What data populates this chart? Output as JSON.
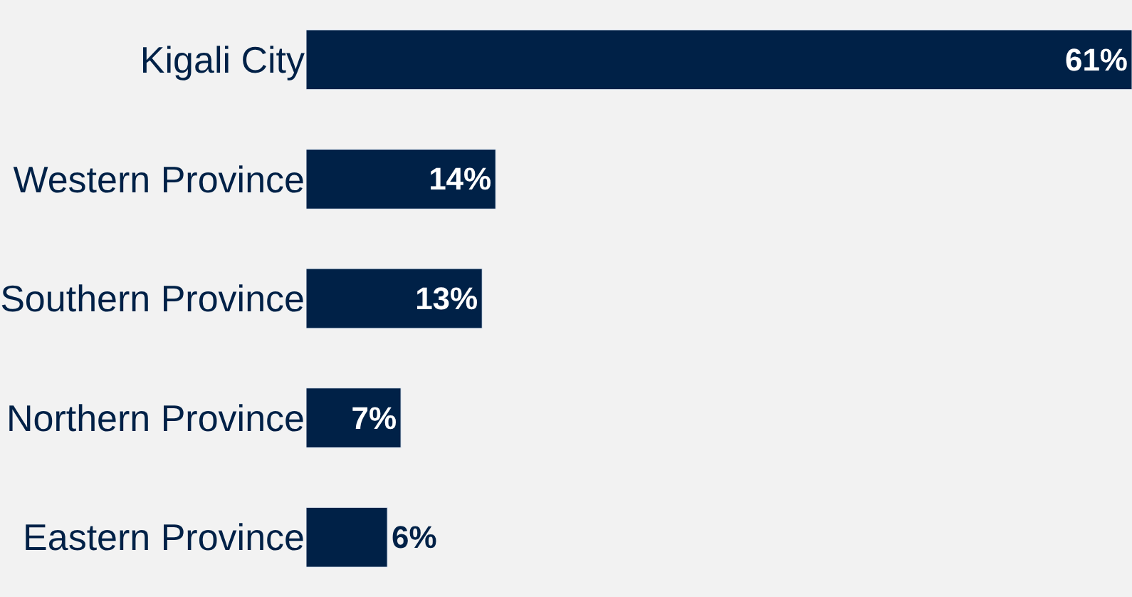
{
  "chart_data": {
    "type": "bar",
    "orientation": "horizontal",
    "categories": [
      "Kigali City",
      "Western Province",
      "Southern Province",
      "Northern Province",
      "Eastern Province"
    ],
    "values": [
      61,
      14,
      13,
      7,
      6
    ],
    "value_labels": [
      "61%",
      "14%",
      "13%",
      "7%",
      "6%"
    ],
    "color": "#002147",
    "grid": false,
    "legend": false
  }
}
